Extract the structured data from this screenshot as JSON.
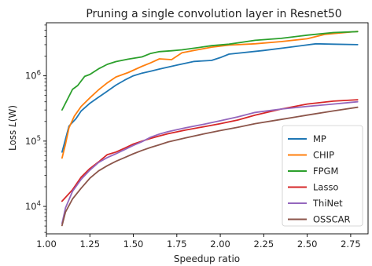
{
  "chart_data": {
    "type": "line",
    "title": "Pruning a single convolution layer in Resnet50",
    "xlabel": "Speedup ratio",
    "ylabel": "Loss L(W)",
    "ylabel_parts": {
      "prefix": "Loss ",
      "var": "L",
      "arg": "(W)"
    },
    "xlim": [
      1.0,
      2.85
    ],
    "ylim": [
      3800,
      6500000
    ],
    "yscale": "log",
    "x_ticks": [
      1.0,
      1.25,
      1.5,
      1.75,
      2.0,
      2.25,
      2.5,
      2.75
    ],
    "x_tick_labels": [
      "1.00",
      "1.25",
      "1.50",
      "1.75",
      "2.00",
      "2.25",
      "2.50",
      "2.75"
    ],
    "y_ticks": [
      10000,
      100000,
      1000000
    ],
    "y_tick_labels": {
      "base": "10",
      "exponents": [
        "4",
        "5",
        "6"
      ]
    },
    "grid": false,
    "legend_position": "lower-right",
    "series": [
      {
        "name": "MP",
        "color": "#1f77b4",
        "x": [
          1.09,
          1.13,
          1.17,
          1.2,
          1.25,
          1.3,
          1.35,
          1.4,
          1.45,
          1.5,
          1.55,
          1.6,
          1.65,
          1.7,
          1.75,
          1.8,
          1.85,
          1.95,
          2.0,
          2.05,
          2.25,
          2.4,
          2.55,
          2.65,
          2.79
        ],
        "y": [
          68000,
          170000,
          220000,
          290000,
          380000,
          470000,
          580000,
          720000,
          860000,
          1000000,
          1100000,
          1180000,
          1270000,
          1360000,
          1460000,
          1560000,
          1660000,
          1720000,
          1900000,
          2150000,
          2450000,
          2750000,
          3100000,
          3050000,
          3000000
        ]
      },
      {
        "name": "CHIP",
        "color": "#ff7f0e",
        "x": [
          1.09,
          1.11,
          1.13,
          1.16,
          1.2,
          1.25,
          1.3,
          1.35,
          1.4,
          1.47,
          1.55,
          1.6,
          1.65,
          1.72,
          1.78,
          1.85,
          1.95,
          2.05,
          2.2,
          2.35,
          2.5,
          2.6,
          2.79
        ],
        "y": [
          55000,
          90000,
          160000,
          240000,
          340000,
          460000,
          610000,
          780000,
          960000,
          1120000,
          1400000,
          1580000,
          1820000,
          1770000,
          2250000,
          2450000,
          2750000,
          2950000,
          3100000,
          3350000,
          3700000,
          4300000,
          4800000
        ]
      },
      {
        "name": "FPGM",
        "color": "#2ca02c",
        "x": [
          1.09,
          1.12,
          1.15,
          1.18,
          1.22,
          1.25,
          1.3,
          1.35,
          1.4,
          1.47,
          1.55,
          1.6,
          1.65,
          1.72,
          1.78,
          1.85,
          1.95,
          2.05,
          2.2,
          2.35,
          2.5,
          2.65,
          2.79
        ],
        "y": [
          300000,
          430000,
          620000,
          710000,
          980000,
          1050000,
          1280000,
          1500000,
          1650000,
          1800000,
          1950000,
          2200000,
          2350000,
          2420000,
          2500000,
          2650000,
          2900000,
          3050000,
          3500000,
          3750000,
          4200000,
          4600000,
          4750000
        ]
      },
      {
        "name": "Lasso",
        "color": "#d62728",
        "x": [
          1.09,
          1.15,
          1.2,
          1.25,
          1.3,
          1.35,
          1.4,
          1.45,
          1.5,
          1.55,
          1.6,
          1.65,
          1.7,
          1.8,
          1.9,
          2.0,
          2.1,
          2.2,
          2.35,
          2.5,
          2.65,
          2.79
        ],
        "y": [
          12000,
          18000,
          28000,
          38000,
          48000,
          62000,
          68000,
          78000,
          90000,
          100000,
          110000,
          120000,
          130000,
          148000,
          165000,
          185000,
          210000,
          250000,
          310000,
          370000,
          410000,
          430000
        ]
      },
      {
        "name": "ThiNet",
        "color": "#9467bd",
        "x": [
          1.09,
          1.11,
          1.15,
          1.2,
          1.25,
          1.3,
          1.35,
          1.4,
          1.45,
          1.5,
          1.55,
          1.6,
          1.65,
          1.7,
          1.8,
          1.9,
          2.0,
          2.1,
          2.2,
          2.35,
          2.5,
          2.65,
          2.79
        ],
        "y": [
          5500,
          9500,
          17000,
          26000,
          36000,
          47000,
          56000,
          64000,
          74000,
          86000,
          98000,
          115000,
          128000,
          140000,
          160000,
          180000,
          205000,
          235000,
          275000,
          310000,
          340000,
          370000,
          400000
        ]
      },
      {
        "name": "OSSCAR",
        "color": "#8c564b",
        "x": [
          1.09,
          1.11,
          1.15,
          1.2,
          1.25,
          1.3,
          1.35,
          1.4,
          1.45,
          1.5,
          1.55,
          1.6,
          1.65,
          1.7,
          1.8,
          1.9,
          2.0,
          2.1,
          2.2,
          2.35,
          2.5,
          2.65,
          2.79
        ],
        "y": [
          5100,
          8200,
          13000,
          19000,
          27000,
          35000,
          42000,
          49000,
          56000,
          64000,
          72000,
          80000,
          88000,
          97000,
          112000,
          128000,
          145000,
          163000,
          185000,
          215000,
          250000,
          290000,
          330000
        ]
      }
    ]
  }
}
